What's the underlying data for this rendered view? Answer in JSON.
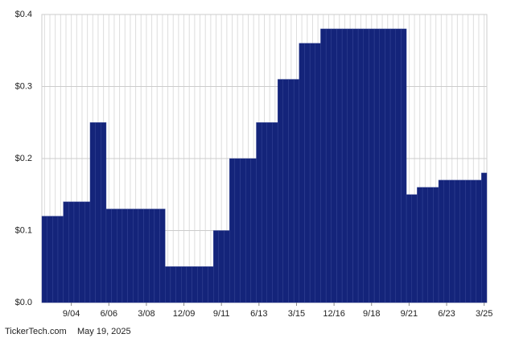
{
  "chart_data": {
    "type": "bar",
    "categories": [
      null,
      null,
      null,
      null,
      null,
      "9/04",
      null,
      null,
      null,
      null,
      null,
      null,
      "6/06",
      null,
      null,
      null,
      null,
      null,
      null,
      "3/08",
      null,
      null,
      null,
      null,
      null,
      null,
      "12/09",
      null,
      null,
      null,
      null,
      null,
      null,
      "9/11",
      null,
      null,
      null,
      null,
      null,
      null,
      "6/13",
      null,
      null,
      null,
      null,
      null,
      null,
      "3/15",
      null,
      null,
      null,
      null,
      null,
      null,
      "12/16",
      null,
      null,
      null,
      null,
      null,
      null,
      "9/18",
      null,
      null,
      null,
      null,
      null,
      null,
      "9/21",
      null,
      null,
      null,
      null,
      null,
      null,
      "6/23",
      null,
      null,
      null,
      null,
      null,
      null,
      "3/25"
    ],
    "values": [
      0.12,
      0.12,
      0.12,
      0.12,
      0.14,
      0.14,
      0.14,
      0.14,
      0.14,
      0.25,
      0.25,
      0.25,
      0.13,
      0.13,
      0.13,
      0.13,
      0.13,
      0.13,
      0.13,
      0.13,
      0.13,
      0.13,
      0.13,
      0.05,
      0.05,
      0.05,
      0.05,
      0.05,
      0.05,
      0.05,
      0.05,
      0.05,
      0.1,
      0.1,
      0.1,
      0.2,
      0.2,
      0.2,
      0.2,
      0.2,
      0.25,
      0.25,
      0.25,
      0.25,
      0.31,
      0.31,
      0.31,
      0.31,
      0.36,
      0.36,
      0.36,
      0.36,
      0.38,
      0.38,
      0.38,
      0.38,
      0.38,
      0.38,
      0.38,
      0.38,
      0.38,
      0.38,
      0.38,
      0.38,
      0.38,
      0.38,
      0.38,
      0.38,
      0.15,
      0.15,
      0.16,
      0.16,
      0.16,
      0.16,
      0.17,
      0.17,
      0.17,
      0.17,
      0.17,
      0.17,
      0.17,
      0.17,
      0.18
    ],
    "color": "#14247a",
    "ylim": [
      0,
      0.4
    ],
    "yticks": [
      {
        "value": 0,
        "label": "$0.0"
      },
      {
        "value": 0.1,
        "label": "$0.1"
      },
      {
        "value": 0.2,
        "label": "$0.2"
      },
      {
        "value": 0.3,
        "label": "$0.3"
      },
      {
        "value": 0.4,
        "label": "$0.4"
      }
    ],
    "grid": true
  },
  "footer": {
    "source": "TickerTech.com",
    "date": "May 19, 2025"
  }
}
